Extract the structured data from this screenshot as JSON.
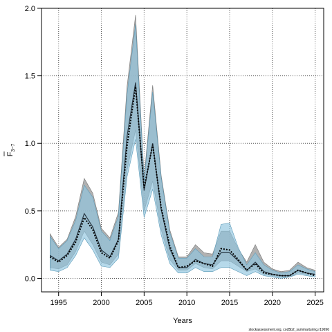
{
  "chart_data": {
    "type": "line",
    "xlabel": "Years",
    "ylabel_main": "F",
    "ylabel_sub": "3−7",
    "xlim": [
      1993,
      2026
    ],
    "ylim": [
      -0.1,
      2.0
    ],
    "xticks": [
      "1995",
      "2000",
      "2005",
      "2010",
      "2015",
      "2020",
      "2025"
    ],
    "yticks": [
      "0.0",
      "0.5",
      "1.0",
      "1.5",
      "2.0"
    ],
    "grid": true,
    "footer": "stockassessment.org, cod5b2_summarturing.r19696",
    "colors": {
      "grey_band": "#9e9e9e",
      "blue_band": "#8fc5de",
      "overlap_band": "#8aafc1",
      "grid": "#555555",
      "line_solid": "#2b3a46",
      "line_dotted": "#000000"
    },
    "x": [
      1994,
      1995,
      1996,
      1997,
      1998,
      1999,
      2000,
      2001,
      2002,
      2003,
      2004,
      2005,
      2006,
      2007,
      2008,
      2009,
      2010,
      2011,
      2012,
      2013,
      2014,
      2015,
      2016,
      2017,
      2018,
      2019,
      2020,
      2021,
      2022,
      2023,
      2024,
      2025
    ],
    "series": [
      {
        "role": "grey_band",
        "upper": [
          0.33,
          0.23,
          0.29,
          0.46,
          0.74,
          0.63,
          0.37,
          0.3,
          0.49,
          1.42,
          1.95,
          0.75,
          1.43,
          0.76,
          0.36,
          0.16,
          0.16,
          0.25,
          0.19,
          0.18,
          0.35,
          0.35,
          0.22,
          0.12,
          0.25,
          0.12,
          0.07,
          0.05,
          0.06,
          0.12,
          0.08,
          0.06
        ],
        "lower": [
          0.08,
          0.07,
          0.1,
          0.2,
          0.35,
          0.25,
          0.12,
          0.1,
          0.18,
          0.8,
          1.1,
          0.5,
          0.72,
          0.36,
          0.14,
          0.06,
          0.06,
          0.11,
          0.08,
          0.07,
          0.13,
          0.13,
          0.09,
          0.05,
          0.07,
          0.03,
          0.02,
          0.01,
          0.01,
          0.04,
          0.03,
          0.02
        ]
      },
      {
        "role": "blue_band",
        "upper": [
          0.31,
          0.22,
          0.28,
          0.43,
          0.69,
          0.6,
          0.35,
          0.28,
          0.46,
          1.36,
          1.88,
          0.72,
          1.38,
          0.74,
          0.34,
          0.15,
          0.15,
          0.22,
          0.16,
          0.16,
          0.4,
          0.41,
          0.23,
          0.1,
          0.19,
          0.1,
          0.06,
          0.04,
          0.05,
          0.1,
          0.07,
          0.05
        ],
        "lower": [
          0.06,
          0.05,
          0.08,
          0.17,
          0.3,
          0.21,
          0.09,
          0.08,
          0.15,
          0.75,
          1.03,
          0.45,
          0.66,
          0.32,
          0.11,
          0.04,
          0.04,
          0.08,
          0.05,
          0.05,
          0.08,
          0.08,
          0.05,
          0.02,
          0.05,
          0.02,
          0.01,
          0.0,
          0.01,
          0.03,
          0.02,
          0.01
        ]
      },
      {
        "role": "line_solid",
        "values": [
          0.17,
          0.13,
          0.18,
          0.29,
          0.48,
          0.38,
          0.21,
          0.16,
          0.29,
          1.05,
          1.45,
          0.65,
          1.0,
          0.51,
          0.22,
          0.08,
          0.08,
          0.14,
          0.11,
          0.1,
          0.19,
          0.19,
          0.13,
          0.06,
          0.12,
          0.05,
          0.03,
          0.02,
          0.02,
          0.06,
          0.04,
          0.03
        ]
      },
      {
        "role": "line_dotted",
        "values": [
          0.16,
          0.12,
          0.17,
          0.27,
          0.45,
          0.36,
          0.19,
          0.15,
          0.28,
          0.98,
          1.42,
          0.67,
          0.99,
          0.52,
          0.24,
          0.08,
          0.09,
          0.13,
          0.11,
          0.09,
          0.22,
          0.21,
          0.14,
          0.06,
          0.11,
          0.04,
          0.03,
          0.02,
          0.02,
          0.06,
          0.04,
          0.02
        ]
      }
    ]
  }
}
